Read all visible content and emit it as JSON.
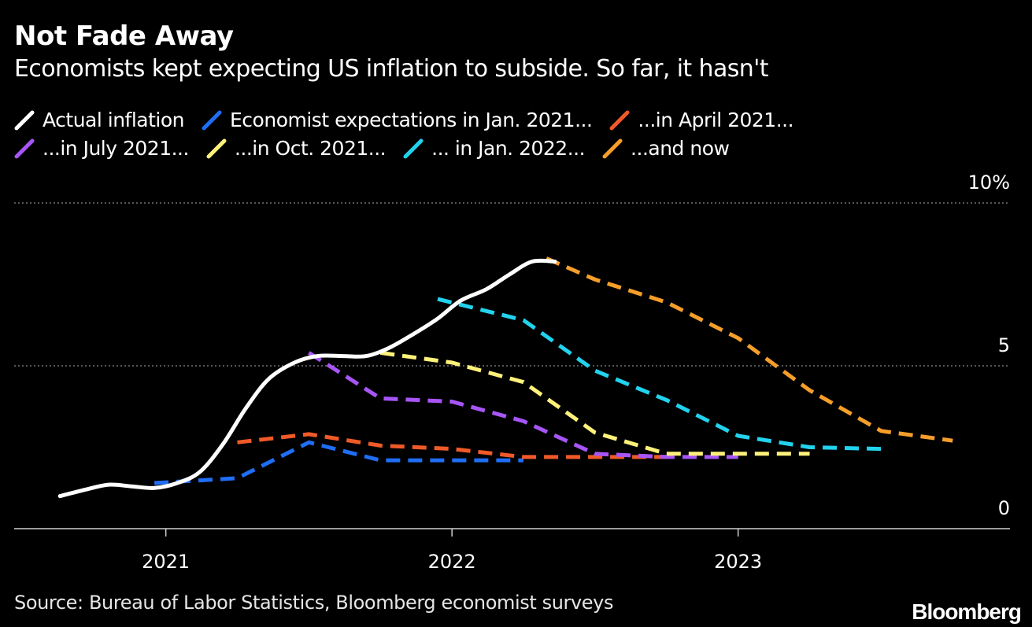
{
  "header": {
    "title": "Not Fade Away",
    "subtitle": "Economists kept expecting US inflation to subside. So far, it hasn't"
  },
  "footer": {
    "source": "Source: Bureau of Labor Statistics, Bloomberg economist surveys",
    "brand": "Bloomberg"
  },
  "chart_data": {
    "type": "line",
    "title": "Not Fade Away",
    "subtitle": "Economists kept expecting US inflation to subside. So far, it hasn't",
    "xlabel": "",
    "ylabel": "",
    "xlim": [
      2020.47,
      2023.95
    ],
    "ylim": [
      0,
      10
    ],
    "x_ticks": [
      {
        "value": 2021,
        "label": "2021"
      },
      {
        "value": 2022,
        "label": "2022"
      },
      {
        "value": 2023,
        "label": "2023"
      }
    ],
    "y_ticks": [
      {
        "value": 0,
        "label": "0"
      },
      {
        "value": 5,
        "label": "5"
      },
      {
        "value": 10,
        "label": "10%"
      }
    ],
    "grid": "horizontal dotted",
    "legend_position": "top",
    "series": [
      {
        "name": "Actual inflation",
        "color": "#ffffff",
        "style": "solid",
        "points": [
          [
            2020.63,
            1.0
          ],
          [
            2020.72,
            1.2
          ],
          [
            2020.8,
            1.35
          ],
          [
            2020.88,
            1.3
          ],
          [
            2020.96,
            1.25
          ],
          [
            2021.04,
            1.4
          ],
          [
            2021.12,
            1.75
          ],
          [
            2021.2,
            2.6
          ],
          [
            2021.28,
            3.7
          ],
          [
            2021.36,
            4.6
          ],
          [
            2021.45,
            5.1
          ],
          [
            2021.53,
            5.3
          ],
          [
            2021.62,
            5.3
          ],
          [
            2021.7,
            5.3
          ],
          [
            2021.78,
            5.55
          ],
          [
            2021.87,
            6.0
          ],
          [
            2021.95,
            6.45
          ],
          [
            2022.03,
            7.0
          ],
          [
            2022.12,
            7.35
          ],
          [
            2022.2,
            7.8
          ],
          [
            2022.28,
            8.2
          ],
          [
            2022.36,
            8.2
          ]
        ]
      },
      {
        "name": "Economist expectations in Jan. 2021...",
        "color": "#1f6ef5",
        "style": "dashed",
        "points": [
          [
            2020.96,
            1.4
          ],
          [
            2021.25,
            1.55
          ],
          [
            2021.5,
            2.65
          ],
          [
            2021.75,
            2.1
          ],
          [
            2022.0,
            2.1
          ],
          [
            2022.25,
            2.1
          ]
        ]
      },
      {
        "name": "...in April 2021...",
        "color": "#f05a28",
        "style": "dashed",
        "points": [
          [
            2021.25,
            2.65
          ],
          [
            2021.5,
            2.9
          ],
          [
            2021.75,
            2.55
          ],
          [
            2022.0,
            2.45
          ],
          [
            2022.25,
            2.2
          ],
          [
            2022.5,
            2.2
          ],
          [
            2022.75,
            2.2
          ]
        ]
      },
      {
        "name": "...in July 2021...",
        "color": "#a855f7",
        "style": "dashed",
        "points": [
          [
            2021.5,
            5.4
          ],
          [
            2021.75,
            4.0
          ],
          [
            2022.0,
            3.9
          ],
          [
            2022.25,
            3.3
          ],
          [
            2022.5,
            2.3
          ],
          [
            2022.75,
            2.2
          ],
          [
            2023.0,
            2.2
          ]
        ]
      },
      {
        "name": "...in Oct. 2021...",
        "color": "#fdf17a",
        "style": "dashed",
        "points": [
          [
            2021.75,
            5.4
          ],
          [
            2022.0,
            5.1
          ],
          [
            2022.25,
            4.5
          ],
          [
            2022.5,
            2.95
          ],
          [
            2022.75,
            2.3
          ],
          [
            2023.0,
            2.3
          ],
          [
            2023.25,
            2.3
          ]
        ]
      },
      {
        "name": "... in Jan. 2022...",
        "color": "#22d3ee",
        "style": "dashed",
        "points": [
          [
            2021.95,
            7.05
          ],
          [
            2022.25,
            6.4
          ],
          [
            2022.5,
            4.85
          ],
          [
            2022.75,
            3.95
          ],
          [
            2023.0,
            2.85
          ],
          [
            2023.25,
            2.5
          ],
          [
            2023.5,
            2.45
          ]
        ]
      },
      {
        "name": "...and now",
        "color": "#f59e2a",
        "style": "dashed",
        "points": [
          [
            2022.33,
            8.3
          ],
          [
            2022.5,
            7.65
          ],
          [
            2022.75,
            6.95
          ],
          [
            2023.0,
            5.85
          ],
          [
            2023.25,
            4.25
          ],
          [
            2023.5,
            3.0
          ],
          [
            2023.75,
            2.7
          ]
        ]
      }
    ]
  }
}
